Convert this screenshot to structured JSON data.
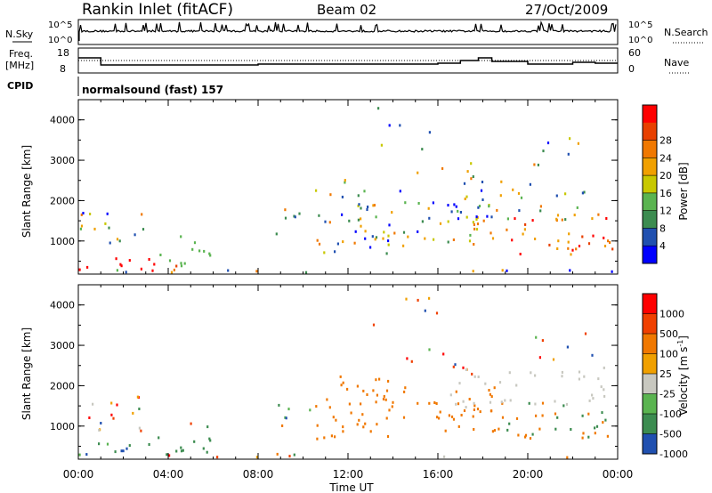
{
  "header": {
    "station": "Rankin Inlet (fitACF)",
    "beam": "Beam 02",
    "date": "27/Oct/2009"
  },
  "sky_panel": {
    "left_label": "N.Sky",
    "right_label": "N.Search",
    "tick_top": "10^5",
    "tick_bottom": "10^0",
    "right_tick_top": "10^5",
    "right_tick_bottom": "10^0"
  },
  "freq_panel": {
    "left_label_1": "Freq.",
    "left_label_2": "[MHz]",
    "right_label": "Nave",
    "left_ticks": [
      "18",
      "8"
    ],
    "right_ticks": [
      "60",
      "0"
    ]
  },
  "cpid": {
    "label": "CPID",
    "value": "normalsound (fast) 157"
  },
  "colors": {
    "power": [
      "#0000ff",
      "#2050b0",
      "#3c8c50",
      "#5ab450",
      "#c8c800",
      "#f0a000",
      "#f07800",
      "#e84000",
      "#ff0000"
    ],
    "velocity": [
      "#ff0000",
      "#f04000",
      "#f07800",
      "#f0a000",
      "#c8c8c0",
      "#5ab450",
      "#3c8c50",
      "#2050b0"
    ]
  },
  "chart_data": [
    {
      "type": "heatmap",
      "title": "Power",
      "ylabel": "Slant Range [km]",
      "xlabel": "Time UT",
      "x_ticks": [
        "00:00",
        "04:00",
        "08:00",
        "12:00",
        "16:00",
        "20:00",
        "00:00"
      ],
      "y_ticks": [
        "1000",
        "2000",
        "3000",
        "4000"
      ],
      "ylim": [
        180,
        4500
      ],
      "colorbar_label": "Power [dB]",
      "colorbar_ticks": [
        "4",
        "8",
        "12",
        "16",
        "20",
        "24",
        "28"
      ]
    },
    {
      "type": "heatmap",
      "title": "Velocity",
      "ylabel": "Slant Range [km]",
      "xlabel": "Time UT",
      "x_ticks": [
        "00:00",
        "04:00",
        "08:00",
        "12:00",
        "16:00",
        "20:00",
        "00:00"
      ],
      "y_ticks": [
        "1000",
        "2000",
        "3000",
        "4000"
      ],
      "ylim": [
        180,
        4500
      ],
      "colorbar_label": "Velocity [m s",
      "colorbar_unit_exp": "-1",
      "colorbar_unit_close": "]",
      "colorbar_ticks": [
        "1000",
        "500",
        "100",
        "25",
        "-25",
        "-100",
        "-500",
        "-1000"
      ]
    }
  ]
}
